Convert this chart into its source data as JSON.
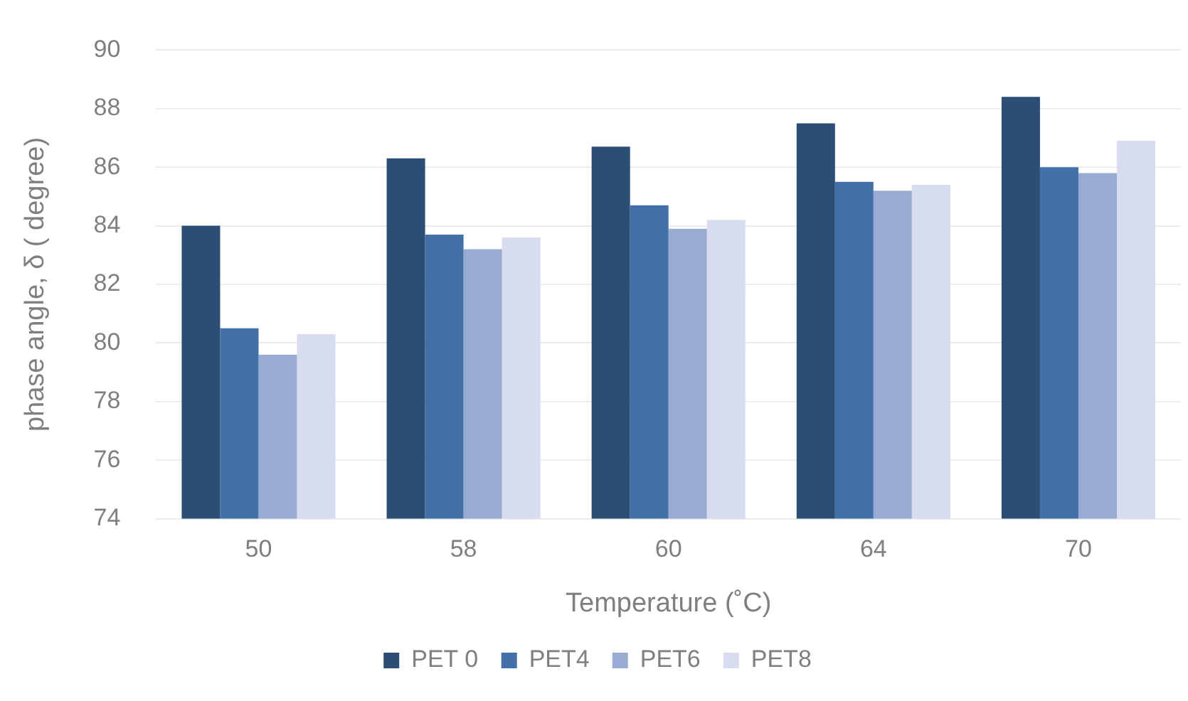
{
  "chart_data": {
    "type": "bar",
    "xlabel": "Temperature (˚C)",
    "ylabel": "phase angle, δ ( degree)",
    "categories": [
      "50",
      "58",
      "60",
      "64",
      "70"
    ],
    "series": [
      {
        "name": "PET 0",
        "color": "#2b4d76",
        "values": [
          84.0,
          86.3,
          86.7,
          87.5,
          88.4
        ]
      },
      {
        "name": "PET4",
        "color": "#4270a8",
        "values": [
          80.5,
          83.7,
          84.7,
          85.5,
          86.0
        ]
      },
      {
        "name": "PET6",
        "color": "#98acd3",
        "values": [
          79.6,
          83.2,
          83.9,
          85.2,
          85.8
        ]
      },
      {
        "name": "PET8",
        "color": "#d7ddee",
        "values": [
          80.3,
          83.6,
          84.2,
          85.4,
          86.9
        ]
      }
    ],
    "ylim": [
      74,
      90
    ],
    "yticks": [
      74,
      76,
      78,
      80,
      82,
      84,
      86,
      88,
      90
    ],
    "grid": "y",
    "legend": "bottom"
  }
}
